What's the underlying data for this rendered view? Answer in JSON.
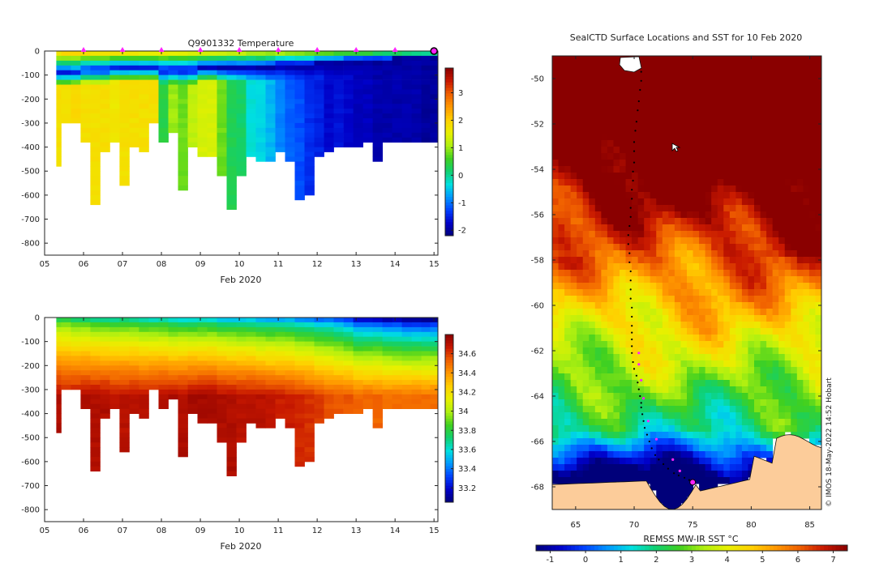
{
  "colors": {
    "jet": [
      "#00007a",
      "#0000c8",
      "#0040ff",
      "#0098ff",
      "#00e0e0",
      "#10d070",
      "#40d020",
      "#b0f010",
      "#e8f000",
      "#ffd000",
      "#ff9800",
      "#f06000",
      "#c81800",
      "#8a0000"
    ],
    "land": "#fccc9a",
    "gap": "#ffffff"
  },
  "chart_data": [
    {
      "type": "heatmap",
      "id": "temperature-section",
      "title": "Q9901332  Temperature",
      "xlabel": "Feb 2020",
      "ylabel": "",
      "xlim": [
        5,
        15.1
      ],
      "ylim": [
        -850,
        0
      ],
      "xticks": [
        "05",
        "06",
        "07",
        "08",
        "09",
        "10",
        "11",
        "12",
        "13",
        "14",
        "15"
      ],
      "yticks": [
        "0",
        "-100",
        "-200",
        "-300",
        "-400",
        "-500",
        "-600",
        "-700",
        "-800"
      ],
      "profile_markers_day": [
        6,
        7,
        8,
        9,
        10,
        11,
        12,
        13,
        14
      ],
      "end_marker_day": 15,
      "colorbar": {
        "min": -2.2,
        "max": 3.9,
        "ticks": [
          "3",
          "2",
          "1",
          "0",
          "-1",
          "-2"
        ],
        "tick_values": [
          3,
          2,
          1,
          0,
          -1,
          -2
        ]
      },
      "profiles": {
        "days": [
          5.3,
          5.55,
          5.8,
          6.05,
          6.3,
          6.55,
          6.8,
          7.05,
          7.3,
          7.55,
          7.8,
          8.05,
          8.3,
          8.55,
          8.8,
          9.05,
          9.3,
          9.55,
          9.8,
          10.05,
          10.3,
          10.55,
          10.8,
          11.05,
          11.3,
          11.55,
          11.8,
          12.05,
          12.3,
          12.55,
          12.8,
          13.05,
          13.3,
          13.55,
          13.8,
          14.05,
          14.3,
          14.55,
          14.8,
          15.0
        ],
        "max_depth": [
          480,
          300,
          300,
          380,
          640,
          420,
          380,
          545,
          390,
          405,
          300,
          380,
          340,
          580,
          400,
          430,
          430,
          510,
          645,
          510,
          430,
          460,
          460,
          420,
          450,
          620,
          590,
          430,
          410,
          400,
          400,
          390,
          380,
          450,
          380,
          370,
          370,
          370,
          370,
          370
        ],
        "surface_value": [
          1.8,
          1.9,
          1.9,
          1.8,
          1.8,
          1.7,
          1.7,
          1.7,
          1.7,
          1.6,
          1.6,
          1.6,
          1.5,
          1.5,
          1.4,
          1.4,
          1.3,
          1.3,
          1.2,
          1.2,
          1.1,
          1.1,
          1.0,
          1.0,
          0.9,
          0.9,
          0.8,
          0.8,
          0.7,
          0.6,
          0.5,
          0.5,
          0.4,
          0.3,
          0.2,
          0.2,
          0.1,
          0.1,
          0.0,
          0.0
        ],
        "min_value": [
          -1.6,
          -1.6,
          -1.5,
          -1.5,
          -1.6,
          -1.6,
          -1.5,
          -1.6,
          -1.6,
          -1.6,
          -1.6,
          -1.7,
          -1.7,
          -1.8,
          -1.8,
          -1.8,
          -1.8,
          -1.9,
          -1.9,
          -1.9,
          -1.9,
          -1.9,
          -2.0,
          -2.0,
          -2.0,
          -2.0,
          -2.0,
          -2.0,
          -2.0,
          -2.0,
          -2.0,
          -2.0,
          -2.0,
          -2.0,
          -2.0,
          -2.0,
          -2.0,
          -2.0,
          -2.0,
          -2.0
        ],
        "min_depth": [
          80,
          80,
          80,
          70,
          70,
          70,
          60,
          60,
          60,
          60,
          60,
          70,
          70,
          70,
          70,
          60,
          60,
          60,
          60,
          60,
          60,
          60,
          60,
          50,
          50,
          50,
          50,
          40,
          40,
          40,
          30,
          30,
          30,
          30,
          30,
          20,
          20,
          20,
          20,
          20
        ],
        "deep_value": [
          1.8,
          1.8,
          1.9,
          1.8,
          1.8,
          1.8,
          1.7,
          1.8,
          1.8,
          1.8,
          1.8,
          0.4,
          1.0,
          0.8,
          1.2,
          1.4,
          1.4,
          0.8,
          0.3,
          0.2,
          -0.3,
          -0.4,
          -0.6,
          -0.9,
          -1.1,
          -1.2,
          -1.4,
          -1.5,
          -1.7,
          -1.6,
          -1.7,
          -1.8,
          -1.8,
          -1.9,
          -1.9,
          -1.9,
          -1.9,
          -1.9,
          -2.0,
          -2.0
        ]
      }
    },
    {
      "type": "heatmap",
      "id": "salinity-section",
      "title": "",
      "xlabel": "Feb 2020",
      "ylabel": "",
      "xlim": [
        5,
        15.1
      ],
      "ylim": [
        -850,
        0
      ],
      "xticks": [
        "05",
        "06",
        "07",
        "08",
        "09",
        "10",
        "11",
        "12",
        "13",
        "14",
        "15"
      ],
      "yticks": [
        "0",
        "-100",
        "-200",
        "-300",
        "-400",
        "-500",
        "-600",
        "-700",
        "-800"
      ],
      "colorbar": {
        "min": 33.05,
        "max": 34.8,
        "ticks": [
          "34.6",
          "34.4",
          "34.2",
          "34",
          "33.8",
          "33.6",
          "33.4",
          "33.2"
        ],
        "tick_values": [
          34.6,
          34.4,
          34.2,
          34.0,
          33.8,
          33.6,
          33.4,
          33.2
        ]
      },
      "profiles": {
        "surface_value": [
          33.8,
          33.8,
          33.75,
          33.75,
          33.7,
          33.7,
          33.7,
          33.7,
          33.7,
          33.65,
          33.65,
          33.65,
          33.6,
          33.6,
          33.6,
          33.6,
          33.6,
          33.55,
          33.55,
          33.55,
          33.55,
          33.5,
          33.5,
          33.5,
          33.5,
          33.45,
          33.45,
          33.4,
          33.4,
          33.35,
          33.3,
          33.2,
          33.2,
          33.2,
          33.15,
          33.15,
          33.1,
          33.1,
          33.1,
          33.1
        ],
        "deep_value": [
          34.72,
          34.7,
          34.7,
          34.72,
          34.72,
          34.72,
          34.7,
          34.7,
          34.7,
          34.7,
          34.7,
          34.72,
          34.72,
          34.72,
          34.74,
          34.74,
          34.74,
          34.72,
          34.72,
          34.7,
          34.7,
          34.7,
          34.68,
          34.66,
          34.66,
          34.64,
          34.62,
          34.6,
          34.56,
          34.55,
          34.55,
          34.52,
          34.52,
          34.52,
          34.5,
          34.5,
          34.5,
          34.5,
          34.5,
          34.5
        ]
      }
    },
    {
      "type": "heatmap",
      "id": "sst-map",
      "title": "SealCTD Surface Locations and SST for 10 Feb 2020",
      "xlabel": "",
      "ylabel": "",
      "xlim": [
        63,
        86
      ],
      "ylim": [
        -69,
        -49
      ],
      "xticks": [
        "65",
        "70",
        "75",
        "80",
        "85"
      ],
      "xtick_values": [
        65,
        70,
        75,
        80,
        85
      ],
      "yticks": [
        "-50",
        "-52",
        "-54",
        "-56",
        "-58",
        "-60",
        "-62",
        "-64",
        "-66",
        "-68"
      ],
      "ytick_values": [
        -50,
        -52,
        -54,
        -56,
        -58,
        -60,
        -62,
        -64,
        -66,
        -68
      ],
      "colorbar": {
        "label": "REMSS MW-IR SST °C",
        "min": -1.4,
        "max": 7.4,
        "ticks": [
          "-1",
          "0",
          "1",
          "2",
          "3",
          "4",
          "5",
          "6",
          "7"
        ],
        "tick_values": [
          -1,
          0,
          1,
          2,
          3,
          4,
          5,
          6,
          7
        ]
      },
      "track_lon": [
        70.6,
        70.6,
        70.5,
        70.4,
        70.3,
        70.2,
        70.1,
        70.0,
        70.0,
        70.0,
        69.9,
        69.9,
        69.8,
        69.8,
        69.7,
        69.7,
        69.6,
        69.5,
        69.5,
        69.6,
        69.6,
        69.7,
        69.7,
        69.7,
        69.7,
        69.8,
        69.8,
        69.8,
        69.8,
        69.8,
        69.8,
        69.8,
        69.9,
        70.0,
        70.2,
        70.3,
        70.4,
        70.5,
        70.6,
        70.6,
        70.7,
        70.8,
        70.9,
        71.1,
        71.3,
        71.5,
        71.8,
        72.1,
        72.5,
        72.9,
        73.4,
        73.8,
        74.3,
        74.7,
        75.0
      ],
      "track_lat": [
        -49.7,
        -50.1,
        -50.5,
        -51.0,
        -51.4,
        -51.9,
        -52.3,
        -52.8,
        -53.2,
        -53.7,
        -54.1,
        -54.5,
        -54.9,
        -55.3,
        -55.7,
        -56.1,
        -56.5,
        -56.9,
        -57.3,
        -57.7,
        -58.1,
        -58.5,
        -58.9,
        -59.3,
        -59.7,
        -60.1,
        -60.5,
        -60.9,
        -61.2,
        -61.5,
        -61.8,
        -62.1,
        -62.5,
        -62.8,
        -63.1,
        -63.4,
        -63.7,
        -64.0,
        -64.3,
        -64.5,
        -64.8,
        -65.1,
        -65.4,
        -65.7,
        -66.0,
        -66.3,
        -66.6,
        -66.8,
        -67.0,
        -67.2,
        -67.4,
        -67.5,
        -67.6,
        -67.7,
        -67.8
      ],
      "profile_lon": [
        70.4,
        70.4,
        70.6,
        70.8,
        71.2,
        71.9,
        73.3,
        73.9
      ],
      "profile_lat": [
        -62.1,
        -62.6,
        -63.3,
        -64.1,
        -65.1,
        -65.9,
        -66.8,
        -67.3
      ],
      "final_lon": 75.0,
      "final_lat": -67.8
    }
  ],
  "credit": "© IMOS 18-May-2022 14:52 Hobart"
}
